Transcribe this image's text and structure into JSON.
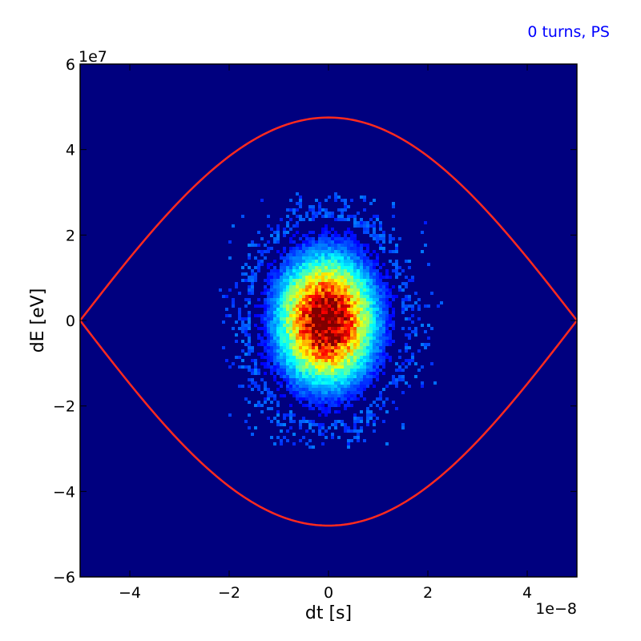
{
  "chart_data": {
    "type": "heatmap",
    "title": "",
    "annotation": "0 turns, PS",
    "annotation_color": "#0000ff",
    "xlabel": "dt [s]",
    "ylabel": "dE [eV]",
    "x_offset_text": "1e−8",
    "y_offset_text": "1e7",
    "xlim": [
      -5e-08,
      5e-08
    ],
    "ylim": [
      -60000000.0,
      60000000.0
    ],
    "x_ticks": [
      -4e-08,
      -2e-08,
      0,
      2e-08,
      4e-08
    ],
    "x_tick_labels": [
      "−4",
      "−2",
      "0",
      "2",
      "4"
    ],
    "y_ticks": [
      -60000000.0,
      -40000000.0,
      -20000000.0,
      0,
      20000000.0,
      40000000.0,
      60000000.0
    ],
    "y_tick_labels": [
      "−6",
      "−4",
      "−2",
      "0",
      "2",
      "4",
      "6"
    ],
    "grid": false,
    "colormap": "jet",
    "background_color": "#00007f",
    "distribution": {
      "center_dt": -4e-10,
      "center_dE": 0,
      "sigma_dt": 6.5e-09,
      "sigma_dE": 10000000.0,
      "extent_dt": [
        -2.2e-08,
        2.3e-08
      ],
      "extent_dE": [
        -30000000.0,
        30000000.0
      ]
    },
    "separatrix": {
      "color": "#ff2a1e",
      "dt_range": [
        -5e-08,
        5e-08
      ],
      "dE_max_upper": 47500000.0,
      "dE_max_lower": -48000000.0
    }
  }
}
